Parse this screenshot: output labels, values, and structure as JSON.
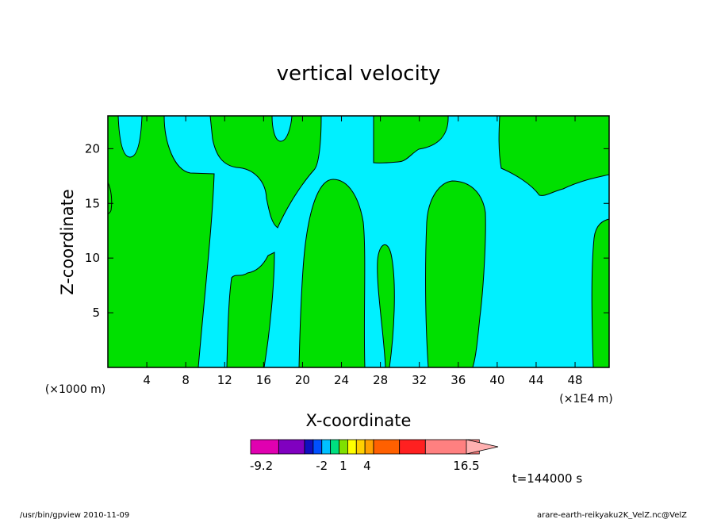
{
  "chart_data": {
    "type": "heatmap",
    "title": "vertical velocity",
    "xlabel": "X-coordinate",
    "ylabel": "Z-coordinate",
    "x_units_left": "(×1000 m)",
    "x_units_right": "(×1E4 m)",
    "time_label": "t=144000 s",
    "xlim": [
      0,
      51.5
    ],
    "ylim": [
      0,
      23
    ],
    "x_ticks": [
      4,
      8,
      12,
      16,
      20,
      24,
      28,
      32,
      36,
      40,
      44,
      48
    ],
    "y_ticks": [
      5,
      10,
      15,
      20
    ],
    "colors": {
      "positive": "#00e000",
      "negative": "#00f0ff",
      "contour": "#000000"
    },
    "colorbar": {
      "labels": [
        "-9.2",
        "-2",
        "1",
        "4",
        "16.5"
      ],
      "segments": [
        {
          "color": "#e000b0",
          "w": 0.13
        },
        {
          "color": "#8000c0",
          "w": 0.12
        },
        {
          "color": "#1010c0",
          "w": 0.04
        },
        {
          "color": "#0050ff",
          "w": 0.04
        },
        {
          "color": "#00c0ff",
          "w": 0.04
        },
        {
          "color": "#00e080",
          "w": 0.04
        },
        {
          "color": "#80e000",
          "w": 0.04
        },
        {
          "color": "#ffff00",
          "w": 0.04
        },
        {
          "color": "#ffd000",
          "w": 0.04
        },
        {
          "color": "#ffa000",
          "w": 0.04
        },
        {
          "color": "#ff6000",
          "w": 0.12
        },
        {
          "color": "#ff2020",
          "w": 0.12
        },
        {
          "color": "#ff8080",
          "w": 0.25
        }
      ],
      "label_positions": [
        0.05,
        0.33,
        0.43,
        0.54,
        1.0
      ]
    },
    "footer_left": "/usr/bin/gpview   2010-11-09",
    "footer_right": "arare-earth-reikyaku2K_VelZ.nc@VelZ"
  }
}
